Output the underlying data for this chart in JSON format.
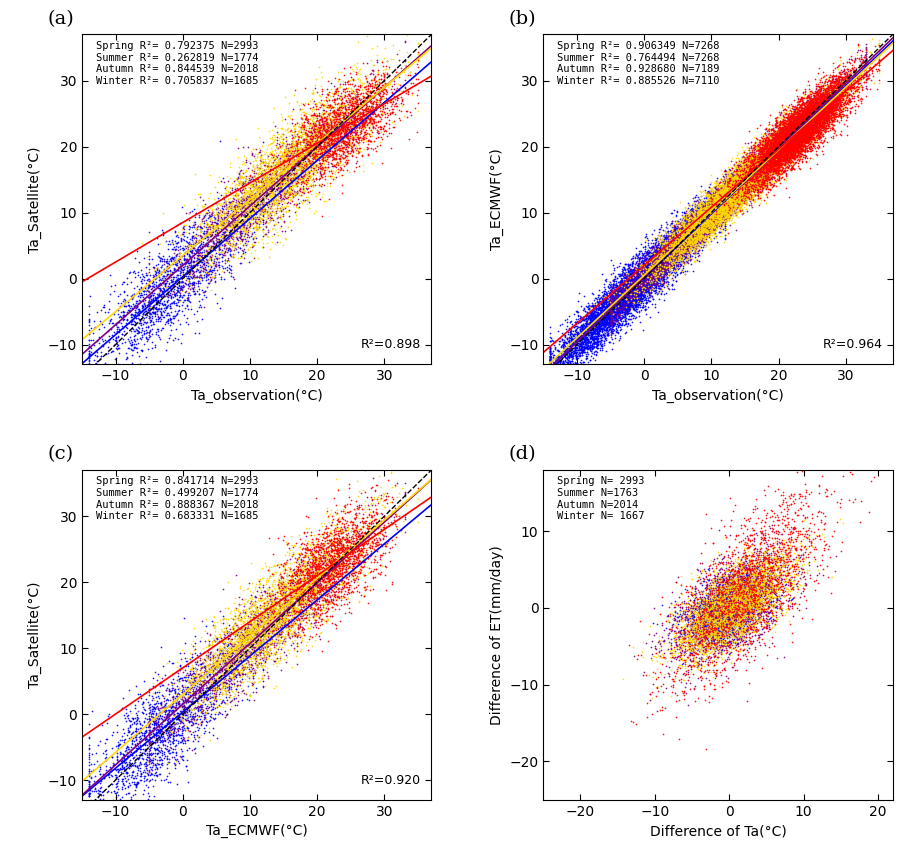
{
  "panels": {
    "a": {
      "label": "(a)",
      "xlabel": "Ta_observation(°C)",
      "ylabel": "Ta_Satellite(°C)",
      "r2_overall": "R²=0.898",
      "xlim": [
        -15,
        37
      ],
      "ylim": [
        -13,
        37
      ],
      "xticks": [
        -10,
        0,
        10,
        20,
        30
      ],
      "yticks": [
        -10,
        0,
        10,
        20,
        30
      ],
      "stats": [
        "Spring R²= 0.792375 N=2993",
        "Summer R²= 0.262819 N=1774",
        "Autumn R²= 0.844539 N=2018",
        "Winter R²= 0.705837 N=1685"
      ]
    },
    "b": {
      "label": "(b)",
      "xlabel": "Ta_observation(°C)",
      "ylabel": "Ta_ECMWF(°C)",
      "r2_overall": "R²=0.964",
      "xlim": [
        -15,
        37
      ],
      "ylim": [
        -13,
        37
      ],
      "xticks": [
        -10,
        0,
        10,
        20,
        30
      ],
      "yticks": [
        -10,
        0,
        10,
        20,
        30
      ],
      "stats": [
        "Spring R²= 0.906349 N=7268",
        "Summer R²= 0.764494 N=7268",
        "Autumn R²= 0.928680 N=7189",
        "Winter R²= 0.885526 N=7110"
      ]
    },
    "c": {
      "label": "(c)",
      "xlabel": "Ta_ECMWF(°C)",
      "ylabel": "Ta_Satellite(°C)",
      "r2_overall": "R²=0.920",
      "xlim": [
        -15,
        37
      ],
      "ylim": [
        -13,
        37
      ],
      "xticks": [
        -10,
        0,
        10,
        20,
        30
      ],
      "yticks": [
        -10,
        0,
        10,
        20,
        30
      ],
      "stats": [
        "Spring R²= 0.841714 N=2993",
        "Summer R²= 0.499207 N=1774",
        "Autumn R²= 0.888367 N=2018",
        "Winter R²= 0.683331 N=1685"
      ]
    },
    "d": {
      "label": "(d)",
      "xlabel": "Difference of Ta(°C)",
      "ylabel": "Difference of ET(mm/day)",
      "xlim": [
        -25,
        22
      ],
      "ylim": [
        -25,
        18
      ],
      "xticks": [
        -20,
        -10,
        0,
        10,
        20
      ],
      "yticks": [
        -20,
        -10,
        0,
        10
      ],
      "stats": [
        "Spring N= 2993",
        "Summer N=1763",
        "Autumn N=2014",
        "Winter N= 1667"
      ]
    }
  },
  "colors": {
    "spring": "#FFD700",
    "summer": "#FF0000",
    "autumn": "#800080",
    "winter": "#0000FF"
  },
  "marker_size": 1.5,
  "line_params": {
    "a": {
      "spring": [
        0.85,
        3.5
      ],
      "summer": [
        0.6,
        8.5
      ],
      "autumn": [
        0.9,
        2.0
      ],
      "winter": [
        0.88,
        0.3
      ]
    },
    "b": {
      "spring": [
        0.95,
        0.5
      ],
      "summer": [
        0.88,
        2.0
      ],
      "autumn": [
        0.98,
        0.2
      ],
      "winter": [
        0.97,
        0.1
      ]
    },
    "c": {
      "spring": [
        0.88,
        3.0
      ],
      "summer": [
        0.7,
        7.0
      ],
      "autumn": [
        0.92,
        1.5
      ],
      "winter": [
        0.85,
        0.3
      ]
    }
  }
}
